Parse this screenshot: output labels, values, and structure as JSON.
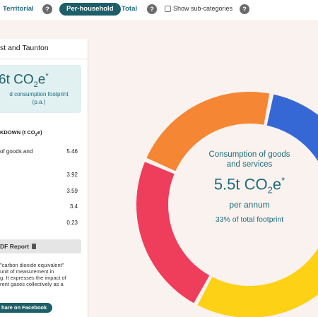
{
  "toolbar": {
    "territorial": "Territorial",
    "per_household": "Per-household",
    "total": "Total",
    "show_sub": "Show sub-categories",
    "help": "?"
  },
  "sidebar": {
    "place": "st and Taunton",
    "footprint_value": "6t CO",
    "footprint_sub": "2",
    "footprint_suffix": "e",
    "footprint_star": "*",
    "footprint_caption_1": "d consumption footprint",
    "footprint_caption_2": "(p.a.)",
    "breakdown_title": "KDOWN (t CO",
    "breakdown_sub": "2",
    "breakdown_end": "e)",
    "rows": [
      {
        "label": "of goods and",
        "value": "5.46"
      },
      {
        "label": "",
        "value": "3.92"
      },
      {
        "label": "",
        "value": "3.59"
      },
      {
        "label": "",
        "value": "3.4"
      },
      {
        "label": "",
        "value": "0.23"
      }
    ],
    "pdf_button": "DF Report",
    "note_lines": [
      "\"carbon dioxide equivalent\"",
      " unit of measurement in",
      "g. It expresses the impact of",
      "rent gases collectively as a"
    ],
    "facebook_button": "hare on Facebook"
  },
  "center": {
    "title_line1": "Consumption of goods",
    "title_line2": "and services",
    "value": "5.5t CO",
    "value_sub": "2",
    "value_suffix": "e",
    "value_star": "*",
    "per": "per annum",
    "share": "33% of total footprint"
  },
  "chart_data": {
    "type": "pie",
    "categories": [
      "Consumption of goods and services",
      "",
      "",
      "",
      ""
    ],
    "values": [
      5.46,
      3.92,
      3.59,
      3.4,
      0.23
    ],
    "colors": [
      "#fcd116",
      "#ef3d5c",
      "#f58634",
      "#3568d4",
      "#9fa9b7"
    ],
    "donut": true,
    "start_angle_deg": 90
  }
}
